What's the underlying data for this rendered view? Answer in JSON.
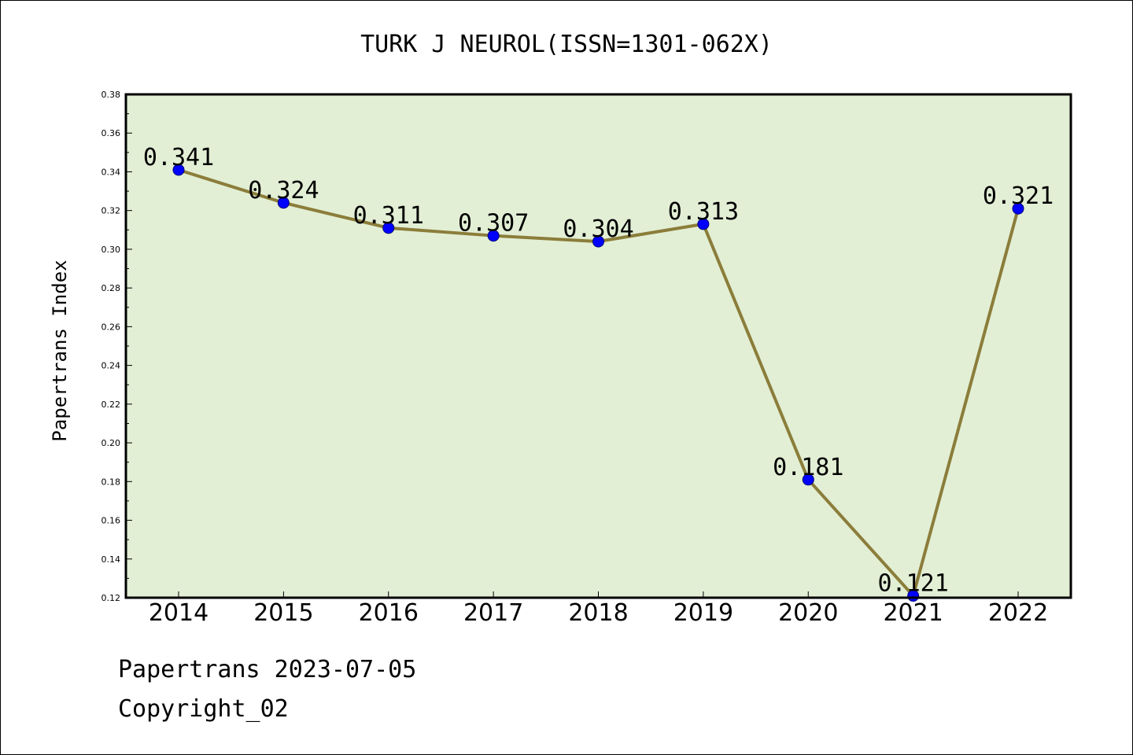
{
  "colors": {
    "plot_background": "#e2efd5",
    "line": "#8b7d3a",
    "marker": "#0000ff",
    "border": "#000000"
  },
  "chart_data": {
    "type": "line",
    "title": "TURK J NEUROL(ISSN=1301-062X)",
    "xlabel": "",
    "ylabel": "Papertrans Index",
    "categories": [
      "2014",
      "2015",
      "2016",
      "2017",
      "2018",
      "2019",
      "2020",
      "2021",
      "2022"
    ],
    "series": [
      {
        "values": [
          0.341,
          0.324,
          0.311,
          0.307,
          0.304,
          0.313,
          0.181,
          0.121,
          0.321
        ],
        "labels": [
          "0.341",
          "0.324",
          "0.311",
          "0.307",
          "0.304",
          "0.313",
          "0.181",
          "0.121",
          "0.321"
        ]
      }
    ],
    "ylim": [
      0.12,
      0.38
    ],
    "yticks": [
      "0.12",
      "0.14",
      "0.16",
      "0.18",
      "0.20",
      "0.22",
      "0.24",
      "0.26",
      "0.28",
      "0.30",
      "0.32",
      "0.34",
      "0.36",
      "0.38"
    ],
    "grid": false,
    "legend": "none"
  },
  "footer": {
    "line1": "Papertrans 2023-07-05",
    "line2": "Copyright_02"
  }
}
